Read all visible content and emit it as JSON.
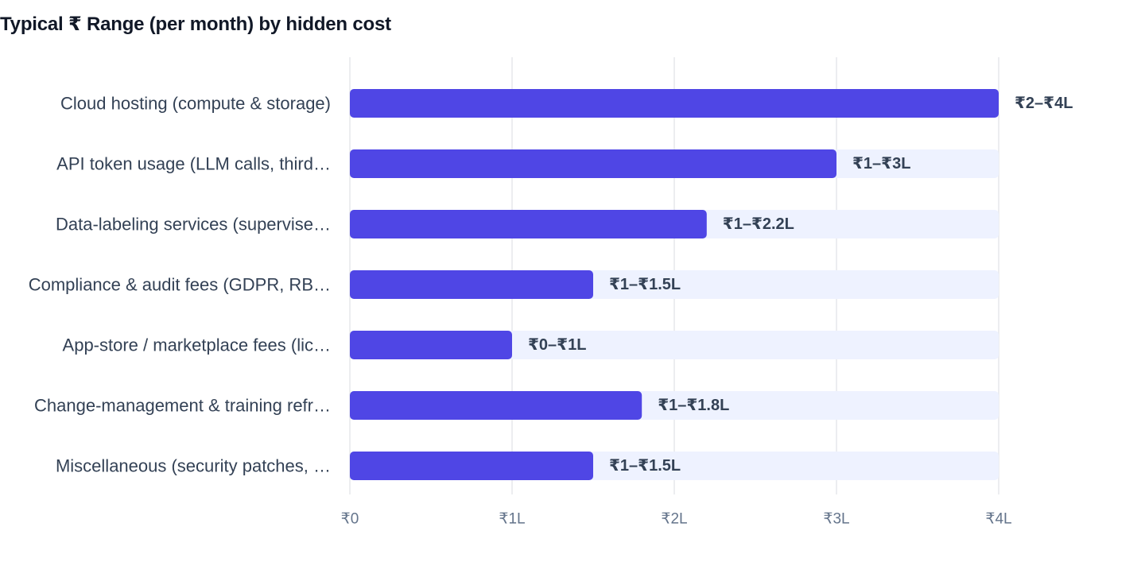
{
  "chart_data": {
    "type": "bar",
    "orientation": "horizontal",
    "title": "Typical ₹ Range (per month) by hidden cost",
    "categories": [
      "Cloud hosting (compute & storage)",
      "API token usage (LLM calls, third…",
      "Data-labeling services (supervise…",
      "Compliance & audit fees (GDPR, RB…",
      "App-store / marketplace fees (lic…",
      "Change-management & training refr…",
      "Miscellaneous (security patches, …"
    ],
    "values": [
      4,
      3,
      2.2,
      1.5,
      1,
      1.8,
      1.5
    ],
    "value_labels": [
      "₹2–₹4L",
      "₹1–₹3L",
      "₹1–₹2.2L",
      "₹1–₹1.5L",
      "₹0–₹1L",
      "₹1–₹1.8L",
      "₹1–₹1.5L"
    ],
    "xlim": [
      0,
      4
    ],
    "xticks": [
      0,
      1,
      2,
      3,
      4
    ],
    "xtick_labels": [
      "₹0",
      "₹1L",
      "₹2L",
      "₹3L",
      "₹4L"
    ],
    "grid": true,
    "colors": {
      "bar": "#4f46e5",
      "track": "#eef2ff",
      "grid": "#e5e7eb"
    }
  }
}
